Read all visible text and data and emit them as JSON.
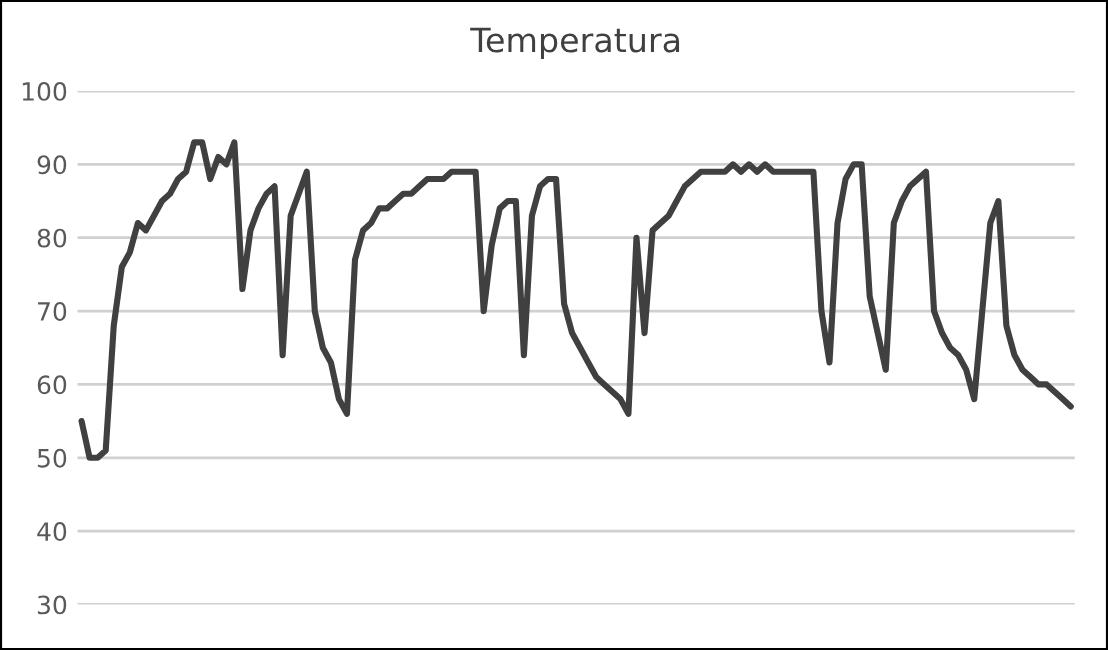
{
  "chart_data": {
    "type": "line",
    "title": "Temperatura",
    "categories": [
      null,
      null,
      null,
      null,
      null,
      null,
      null,
      null,
      null,
      null,
      null,
      null,
      null,
      null,
      null,
      null,
      null,
      null,
      null,
      null,
      null,
      null,
      null,
      null,
      null,
      null,
      null,
      null,
      null,
      null,
      null,
      null,
      null,
      null,
      null,
      null,
      null,
      null,
      null,
      null,
      null,
      null,
      null,
      null,
      null,
      null,
      null,
      null,
      null,
      null,
      null,
      null,
      null,
      null,
      null,
      null,
      null,
      null,
      null,
      null,
      null,
      null,
      null,
      null,
      null,
      null,
      null,
      null,
      null,
      null,
      null,
      null,
      null,
      null,
      null,
      null,
      null,
      null,
      null,
      null,
      null,
      null,
      null,
      null,
      null,
      null,
      null,
      null,
      null,
      null,
      null,
      null,
      null,
      null,
      null,
      null,
      null,
      null,
      null,
      null,
      null,
      null,
      null,
      null,
      null,
      null,
      null,
      null,
      null,
      null,
      null,
      null,
      null,
      null,
      null,
      null,
      null,
      null,
      null,
      null,
      null,
      null,
      null,
      null
    ],
    "series": [
      {
        "color": "#404040",
        "values": [
          55,
          50,
          50,
          51,
          68,
          76,
          78,
          82,
          81,
          83,
          85,
          86,
          88,
          89,
          93,
          93,
          88,
          91,
          90,
          93,
          73,
          81,
          84,
          86,
          87,
          64,
          83,
          86,
          89,
          70,
          65,
          63,
          58,
          56,
          77,
          81,
          82,
          84,
          84,
          85,
          86,
          86,
          87,
          88,
          88,
          88,
          89,
          89,
          89,
          89,
          70,
          79,
          84,
          85,
          85,
          64,
          83,
          87,
          88,
          88,
          71,
          67,
          65,
          63,
          61,
          60,
          59,
          58,
          56,
          80,
          67,
          81,
          82,
          83,
          85,
          87,
          88,
          89,
          89,
          89,
          89,
          90,
          89,
          90,
          89,
          90,
          89,
          89,
          89,
          89,
          89,
          89,
          70,
          63,
          82,
          88,
          90,
          90,
          72,
          67,
          62,
          82,
          85,
          87,
          88,
          89,
          70,
          67,
          65,
          64,
          62,
          58,
          70,
          82,
          85,
          68,
          64,
          62,
          61,
          60,
          60,
          59,
          58,
          57
        ]
      }
    ],
    "ylim": [
      30,
      100
    ],
    "yticks": [
      30,
      40,
      50,
      60,
      70,
      80,
      90,
      100
    ],
    "grid": "y",
    "marker": "none",
    "line_style": "solid",
    "legend": false
  }
}
